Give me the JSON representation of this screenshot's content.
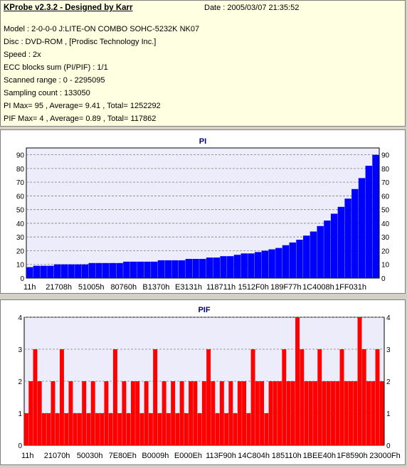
{
  "info": {
    "title": "KProbe v2.3.2 - Designed by Karr",
    "date": "Date : 2005/03/07 21:35:52",
    "lines": [
      "Model : 2-0-0-0 J:LITE-ON COMBO SOHC-5232K NK07",
      "Disc : DVD-ROM ,  [Prodisc Technology Inc.]",
      "Speed : 2x",
      "ECC blocks sum (PI/PIF) : 1/1",
      "Scanned range : 0 - 2295095",
      "Sampling count : 133050",
      "PI Max= 95 , Average= 9.41 , Total= 1252292",
      "PIF Max= 4 , Average= 0.89 , Total= 117862"
    ]
  },
  "colors": {
    "pi_bars": "#0000ff",
    "pif_bars": "#ff0000",
    "plot_bg": "#ececfa",
    "grid": "#808080",
    "title_text": "#000080"
  },
  "chart_data": [
    {
      "type": "bar",
      "title": "PI",
      "ylim": [
        0,
        95
      ],
      "y_ticks": [
        0,
        10,
        20,
        30,
        40,
        50,
        60,
        70,
        80,
        90
      ],
      "x_tick_labels": [
        "11h",
        "21708h",
        "51005h",
        "80760h",
        "B1370h",
        "E3131h",
        "118711h",
        "1512F0h",
        "189F77h",
        "1C4008h",
        "1FF031h"
      ],
      "grid": true,
      "series": [
        {
          "values": [
            8,
            9,
            9,
            9,
            10,
            10,
            10,
            10,
            10,
            11,
            11,
            11,
            11,
            11,
            12,
            12,
            12,
            12,
            12,
            13,
            13,
            13,
            13,
            14,
            14,
            14,
            15,
            15,
            16,
            16,
            17,
            18,
            18,
            19,
            20,
            21,
            22,
            24,
            26,
            28,
            31,
            34,
            38,
            42,
            47,
            52,
            58,
            65,
            73,
            82,
            90
          ]
        }
      ]
    },
    {
      "type": "bar",
      "title": "PIF",
      "ylim": [
        0,
        4
      ],
      "y_ticks": [
        0,
        1,
        2,
        3,
        4
      ],
      "x_tick_labels": [
        "11h",
        "21070h",
        "50030h",
        "7E80Eh",
        "B0009h",
        "E000Eh",
        "113F90h",
        "14C804h",
        "185110h",
        "1BEE40h",
        "1F8590h",
        "23000Fh"
      ],
      "grid": true,
      "series": [
        {
          "values": [
            1,
            2,
            3,
            2,
            1,
            1,
            2,
            1,
            3,
            1,
            2,
            1,
            1,
            2,
            1,
            2,
            1,
            1,
            2,
            1,
            3,
            1,
            2,
            1,
            2,
            2,
            1,
            2,
            1,
            3,
            1,
            2,
            1,
            2,
            1,
            2,
            1,
            2,
            2,
            1,
            2,
            3,
            2,
            1,
            2,
            1,
            2,
            1,
            2,
            2,
            1,
            3,
            2,
            2,
            1,
            2,
            2,
            2,
            3,
            2,
            2,
            4,
            3,
            2,
            2,
            2,
            3,
            2,
            2,
            2,
            2,
            3,
            2,
            2,
            2,
            4,
            3,
            2,
            2,
            3,
            2
          ]
        }
      ]
    }
  ]
}
